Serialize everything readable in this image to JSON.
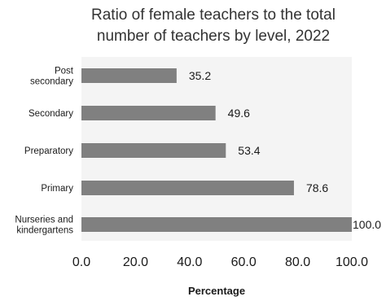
{
  "chart_data": {
    "type": "bar",
    "orientation": "horizontal",
    "title": "Ratio of female teachers to the total number of teachers by level, 2022",
    "title_lines": [
      "Ratio of female teachers to the total",
      "number of teachers by level, 2022"
    ],
    "categories": [
      "Post secondary",
      "Secondary",
      "Preparatory",
      "Primary",
      "Nurseries and kindergartens"
    ],
    "category_lines": [
      [
        "Post",
        "secondary"
      ],
      [
        "Secondary"
      ],
      [
        "Preparatory"
      ],
      [
        "Primary"
      ],
      [
        "Nurseries and",
        "kindergartens"
      ]
    ],
    "values": [
      35.2,
      49.6,
      53.4,
      78.6,
      100.0
    ],
    "value_labels": [
      "35.2",
      "49.6",
      "53.4",
      "78.6",
      "100.0"
    ],
    "xlabel": "Percentage",
    "ylabel": "",
    "xlim": [
      0,
      100
    ],
    "xticks": [
      0,
      20,
      40,
      60,
      80,
      100
    ],
    "xtick_labels": [
      "0.0",
      "20.0",
      "40.0",
      "60.0",
      "80.0",
      "100.0"
    ],
    "grid": false,
    "legend": "none",
    "colors": {
      "bar": "#808080",
      "plot_background": "#f4f4f4",
      "text": "#1a1a1a",
      "title": "#333333"
    }
  }
}
